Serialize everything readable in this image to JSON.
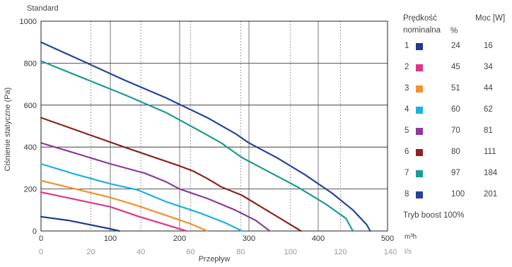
{
  "chart_data": {
    "type": "line",
    "title": "Standard",
    "xlabel": "Przepływ",
    "ylabel": "Ciśnienie statyczne (Pa)",
    "x_unit": "m³h",
    "x2_unit": "l/s",
    "xlim": [
      0,
      500
    ],
    "ylim": [
      0,
      1000
    ],
    "x_ticks": [
      0,
      100,
      200,
      300,
      400,
      500
    ],
    "x2_ticks": [
      0,
      20,
      40,
      60,
      80,
      100,
      120,
      140
    ],
    "y_ticks": [
      0,
      200,
      400,
      600,
      800,
      1000
    ],
    "grid": true,
    "legend_position": "right",
    "series": [
      {
        "id": "1",
        "speed": "24",
        "power": "16",
        "color": "#1f3b8c",
        "points": [
          [
            0,
            68
          ],
          [
            40,
            50
          ],
          [
            70,
            30
          ],
          [
            100,
            10
          ],
          [
            113,
            0
          ]
        ]
      },
      {
        "id": "2",
        "speed": "45",
        "power": "34",
        "color": "#e0358a",
        "points": [
          [
            0,
            185
          ],
          [
            50,
            150
          ],
          [
            100,
            115
          ],
          [
            140,
            70
          ],
          [
            180,
            30
          ],
          [
            210,
            0
          ]
        ]
      },
      {
        "id": "3",
        "speed": "51",
        "power": "44",
        "color": "#f5912a",
        "points": [
          [
            0,
            240
          ],
          [
            50,
            200
          ],
          [
            100,
            160
          ],
          [
            140,
            120
          ],
          [
            180,
            75
          ],
          [
            215,
            35
          ],
          [
            240,
            0
          ]
        ]
      },
      {
        "id": "4",
        "speed": "60",
        "power": "62",
        "color": "#1ab2e3",
        "points": [
          [
            0,
            320
          ],
          [
            50,
            270
          ],
          [
            100,
            225
          ],
          [
            140,
            195
          ],
          [
            180,
            140
          ],
          [
            230,
            85
          ],
          [
            265,
            40
          ],
          [
            290,
            0
          ]
        ]
      },
      {
        "id": "5",
        "speed": "70",
        "power": "81",
        "color": "#8d3b9b",
        "points": [
          [
            0,
            420
          ],
          [
            50,
            370
          ],
          [
            100,
            320
          ],
          [
            150,
            275
          ],
          [
            180,
            235
          ],
          [
            200,
            200
          ],
          [
            240,
            155
          ],
          [
            280,
            100
          ],
          [
            310,
            50
          ],
          [
            330,
            0
          ]
        ]
      },
      {
        "id": "6",
        "speed": "80",
        "power": "111",
        "color": "#8b2323",
        "points": [
          [
            0,
            540
          ],
          [
            60,
            470
          ],
          [
            120,
            400
          ],
          [
            160,
            355
          ],
          [
            200,
            310
          ],
          [
            220,
            285
          ],
          [
            240,
            250
          ],
          [
            260,
            210
          ],
          [
            290,
            170
          ],
          [
            320,
            110
          ],
          [
            350,
            50
          ],
          [
            375,
            0
          ]
        ]
      },
      {
        "id": "7",
        "speed": "97",
        "power": "184",
        "color": "#1d9a94",
        "points": [
          [
            0,
            810
          ],
          [
            60,
            730
          ],
          [
            120,
            650
          ],
          [
            180,
            565
          ],
          [
            230,
            475
          ],
          [
            260,
            420
          ],
          [
            290,
            350
          ],
          [
            330,
            280
          ],
          [
            370,
            210
          ],
          [
            410,
            130
          ],
          [
            440,
            60
          ],
          [
            450,
            0
          ]
        ]
      },
      {
        "id": "8",
        "speed": "100",
        "power": "201",
        "color": "#24449b",
        "points": [
          [
            0,
            900
          ],
          [
            60,
            810
          ],
          [
            120,
            720
          ],
          [
            180,
            635
          ],
          [
            240,
            540
          ],
          [
            280,
            465
          ],
          [
            300,
            420
          ],
          [
            340,
            350
          ],
          [
            380,
            270
          ],
          [
            420,
            180
          ],
          [
            450,
            100
          ],
          [
            470,
            30
          ],
          [
            475,
            0
          ]
        ]
      }
    ]
  },
  "legend": {
    "speed_header_line1": "Prędkość",
    "speed_header_line2": "nominalna",
    "speed_unit": "%",
    "power_header": "Moc [W]",
    "footer": "Tryb boost 100%"
  }
}
